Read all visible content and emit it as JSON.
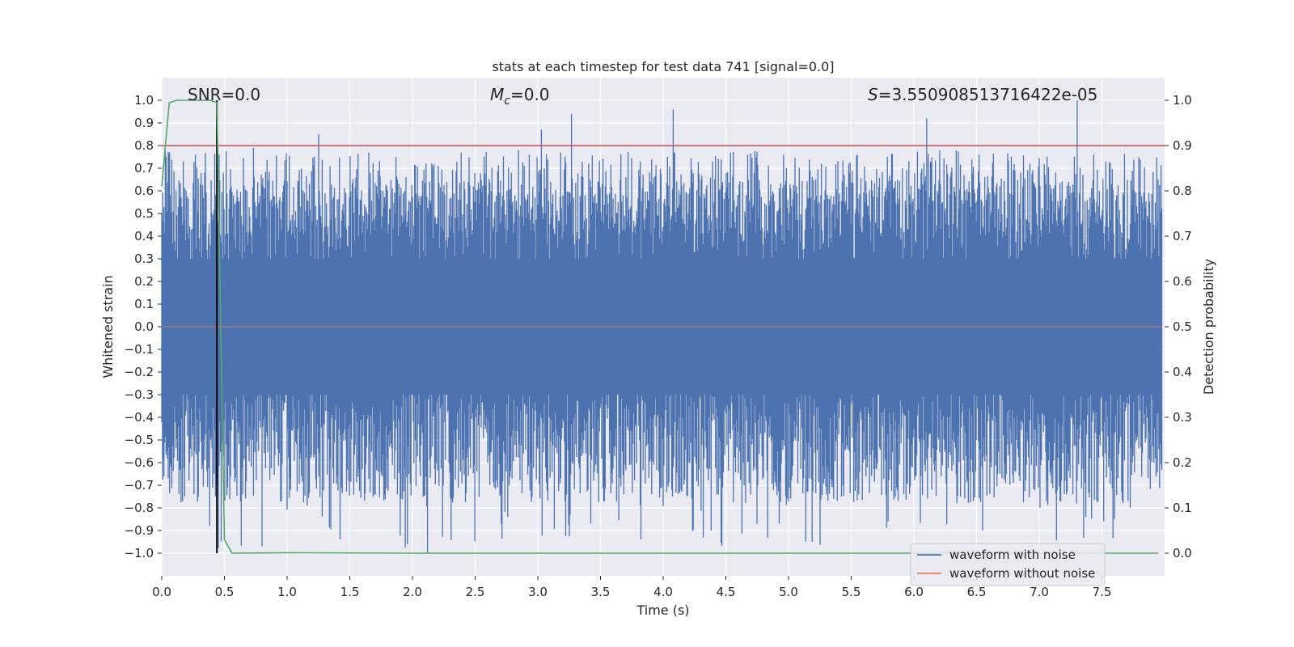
{
  "chart_data": {
    "type": "line",
    "title": "stats at each timestep for test data 741 [signal=0.0]",
    "xlabel": "Time (s)",
    "ylabel": "Whitened strain",
    "ylabel_right": "Detection probability",
    "xlim": [
      0.0,
      8.0
    ],
    "ylim": [
      -1.1,
      1.1
    ],
    "ylim_right": [
      -0.05,
      1.05
    ],
    "xticks": [
      0.0,
      0.5,
      1.0,
      1.5,
      2.0,
      2.5,
      3.0,
      3.5,
      4.0,
      4.5,
      5.0,
      5.5,
      6.0,
      6.5,
      7.0,
      7.5
    ],
    "xtick_labels": [
      "0.0",
      "0.5",
      "1.0",
      "1.5",
      "2.0",
      "2.5",
      "3.0",
      "3.5",
      "4.0",
      "4.5",
      "5.0",
      "5.5",
      "6.0",
      "6.5",
      "7.0",
      "7.5"
    ],
    "yticks": [
      -1.0,
      -0.9,
      -0.8,
      -0.7,
      -0.6,
      -0.5,
      -0.4,
      -0.3,
      -0.2,
      -0.1,
      0.0,
      0.1,
      0.2,
      0.3,
      0.4,
      0.5,
      0.6,
      0.7,
      0.8,
      0.9,
      1.0
    ],
    "ytick_labels": [
      "−1.0",
      "−0.9",
      "−0.8",
      "−0.7",
      "−0.6",
      "−0.5",
      "−0.4",
      "−0.3",
      "−0.2",
      "−0.1",
      "0.0",
      "0.1",
      "0.2",
      "0.3",
      "0.4",
      "0.5",
      "0.6",
      "0.7",
      "0.8",
      "0.9",
      "1.0"
    ],
    "yticks_right": [
      0.0,
      0.1,
      0.2,
      0.3,
      0.4,
      0.5,
      0.6,
      0.7,
      0.8,
      0.9,
      1.0
    ],
    "ytick_labels_right": [
      "0.0",
      "0.1",
      "0.2",
      "0.3",
      "0.4",
      "0.5",
      "0.6",
      "0.7",
      "0.8",
      "0.9",
      "1.0"
    ],
    "grid": true,
    "legend_position": "lower-right",
    "annotations": {
      "snr": "SNR=0.0",
      "mc_symbol": "M",
      "mc_subscript": "c",
      "mc_value": "=0.0",
      "s_symbol": "S",
      "s_value": "=3.550908513716422e-05"
    },
    "threshold": {
      "value": 0.9,
      "axis": "right",
      "color": "#c44e52"
    },
    "marker_time": 0.44,
    "noise": {
      "name": "waveform with noise",
      "color": "#4c72b0",
      "typical_amplitude": 0.5,
      "spikes": [
        {
          "x": 0.73,
          "y": 0.79
        },
        {
          "x": 1.25,
          "y": 0.85
        },
        {
          "x": 3.03,
          "y": 0.87
        },
        {
          "x": 3.27,
          "y": 0.94
        },
        {
          "x": 4.08,
          "y": 0.96
        },
        {
          "x": 6.1,
          "y": 0.92
        },
        {
          "x": 7.3,
          "y": 1.0
        },
        {
          "x": 0.38,
          "y": -0.88
        },
        {
          "x": 2.12,
          "y": -1.0
        },
        {
          "x": 3.82,
          "y": -0.94
        },
        {
          "x": 4.75,
          "y": -0.87
        },
        {
          "x": 5.19,
          "y": -0.95
        },
        {
          "x": 6.55,
          "y": -0.9
        },
        {
          "x": 2.76,
          "y": -0.84
        },
        {
          "x": 1.16,
          "y": -0.79
        }
      ]
    },
    "clean": {
      "name": "waveform without noise",
      "color": "#dd8452",
      "values": 0.0
    },
    "probability": {
      "name": "detection probability",
      "color": "#55a868",
      "x": [
        0.0,
        0.06,
        0.12,
        0.2,
        0.3,
        0.38,
        0.44,
        0.5,
        0.56,
        1.0,
        2.0,
        3.0,
        4.0,
        5.0,
        6.0,
        7.0,
        7.95
      ],
      "y": [
        0.81,
        0.995,
        1.0,
        1.0,
        1.0,
        1.0,
        0.995,
        0.03,
        0.0,
        0.001,
        0.0,
        0.0,
        0.0,
        0.0,
        0.0,
        0.0,
        0.0
      ]
    }
  }
}
